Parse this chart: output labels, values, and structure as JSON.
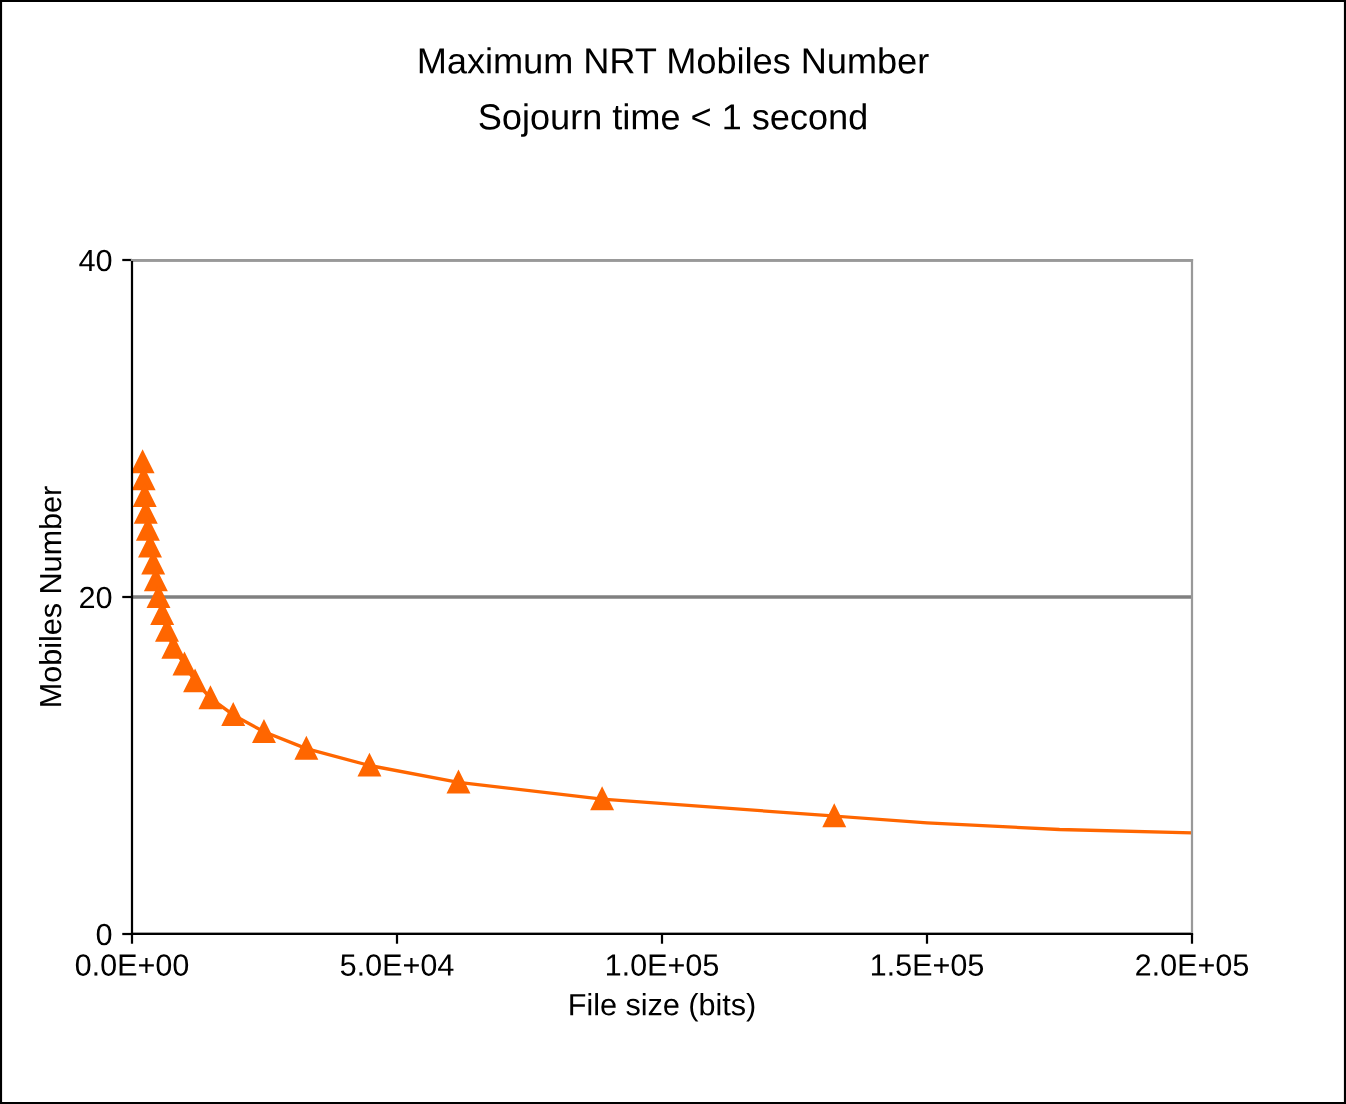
{
  "chart_data": {
    "type": "line",
    "title": "Maximum NRT Mobiles Number",
    "subtitle": "Sojourn time < 1 second",
    "xlabel": "File size (bits)",
    "ylabel": "Mobiles Number",
    "series": [
      {
        "color": "#ff6600",
        "marker": "triangle",
        "x": [
          2000,
          2200,
          2400,
          2600,
          3000,
          3400,
          4000,
          4500,
          5000,
          5700,
          6600,
          7800,
          9900,
          11900,
          14800,
          19100,
          24900,
          32900,
          44800,
          61600,
          88700,
          132500
        ],
        "values": [
          28,
          27,
          26,
          25,
          24,
          23,
          22,
          21,
          20,
          19,
          18,
          17,
          16,
          15,
          14,
          13,
          12,
          11,
          10,
          9,
          8,
          7
        ]
      },
      {
        "color": "#ff6600",
        "marker": "none",
        "x": [
          132500,
          150000,
          175000,
          200000
        ],
        "values": [
          7,
          6.6,
          6.2,
          6.0
        ]
      }
    ],
    "xlim": [
      0,
      200000
    ],
    "xticks": [
      {
        "value": 0,
        "label": "0.0E+00"
      },
      {
        "value": 50000,
        "label": "5.0E+04"
      },
      {
        "value": 100000,
        "label": "1.0E+05"
      },
      {
        "value": 150000,
        "label": "1.5E+05"
      },
      {
        "value": 200000,
        "label": "2.0E+05"
      }
    ],
    "ylim": [
      0,
      40
    ],
    "yticks": [
      0,
      20,
      40
    ],
    "grid": "y",
    "line_style": "solid"
  }
}
